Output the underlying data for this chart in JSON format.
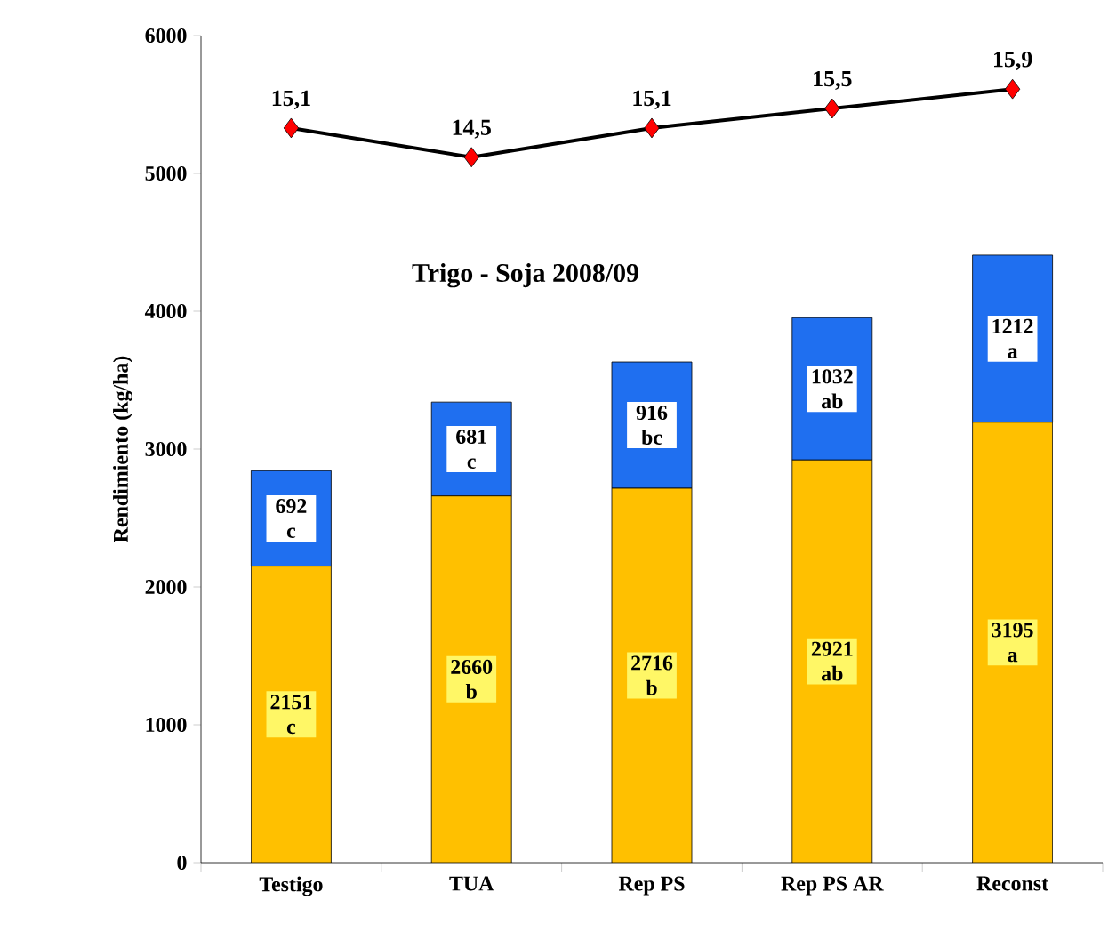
{
  "chart_data": {
    "type": "bar",
    "stacked": true,
    "title": "Trigo - Soja 2008/09",
    "ylabel": "Rendimiento (kg/ha)",
    "categories": [
      "Testigo",
      "TUA",
      "Rep PS",
      "Rep PS AR",
      "Reconst"
    ],
    "series": [
      {
        "color": "#ffc000",
        "values": [
          2151,
          2660,
          2716,
          2921,
          3195
        ],
        "value_labels": [
          "2151 c",
          "2660 b",
          "2716 b",
          "2921 ab",
          "3195 a"
        ]
      },
      {
        "color": "#1f6ff0",
        "values": [
          692,
          681,
          916,
          1032,
          1212
        ],
        "value_labels": [
          "692 c",
          "681 c",
          "916 bc",
          "1032 ab",
          "1212 a"
        ]
      },
      {
        "type": "line",
        "axis": "y2",
        "color": "#000000",
        "colors": [
          "#ff0000",
          "#ff0000",
          "#ff0000",
          "#ff0000",
          "#ff0000"
        ],
        "marker": "diamond",
        "values": [
          15.1,
          14.5,
          15.1,
          15.5,
          15.9
        ],
        "value_labels": [
          "15,1",
          "14,5",
          "15,1",
          "15,5",
          "15,9"
        ]
      }
    ],
    "ylim": [
      0,
      6000
    ],
    "yticks": [
      0,
      1000,
      2000,
      3000,
      4000,
      5000,
      6000
    ],
    "y2lim": [
      0,
      17
    ],
    "grid": false
  }
}
